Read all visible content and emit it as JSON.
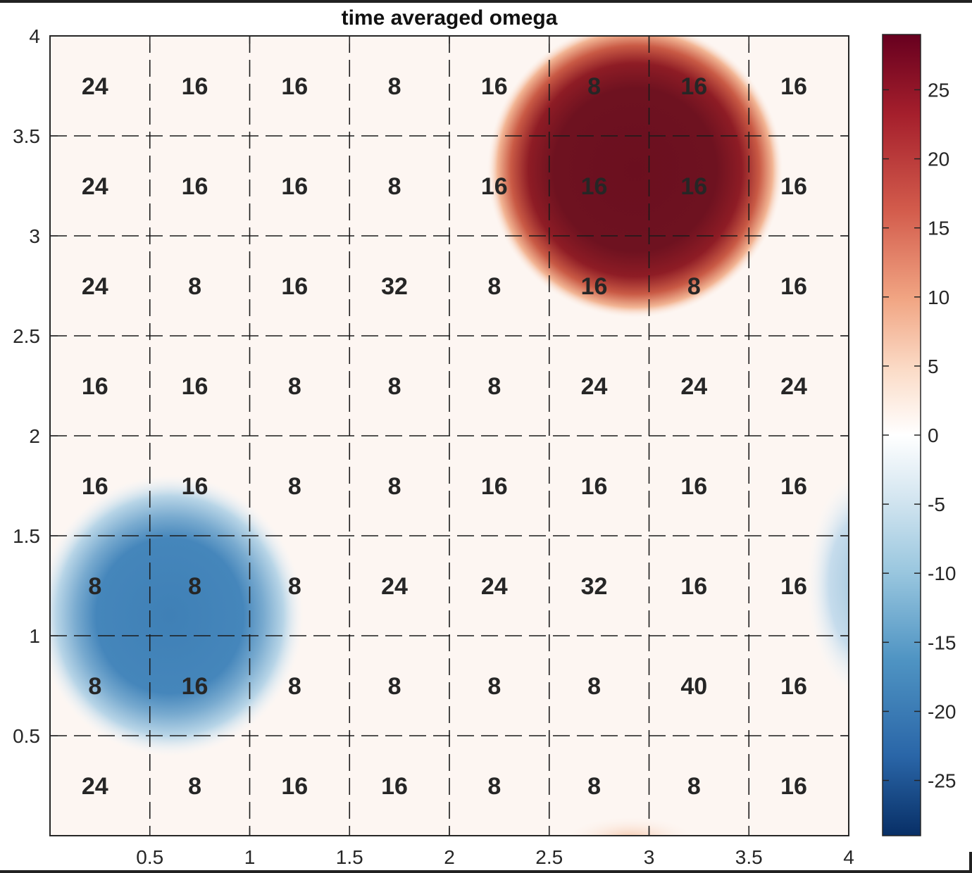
{
  "chart_data": {
    "type": "heatmap",
    "title": "time averaged omega",
    "xlabel": "",
    "ylabel": "",
    "xlim": [
      0,
      4
    ],
    "ylim": [
      0,
      4
    ],
    "xticks": [
      "0.5",
      "1",
      "1.5",
      "2",
      "2.5",
      "3",
      "3.5",
      "4"
    ],
    "yticks": [
      "0.5",
      "1",
      "1.5",
      "2",
      "2.5",
      "3",
      "3.5",
      "4"
    ],
    "grid_lines": [
      0.5,
      1,
      1.5,
      2,
      2.5,
      3,
      3.5
    ],
    "colorbar": {
      "range": [
        -29,
        29
      ],
      "ticks": [
        "25",
        "20",
        "15",
        "10",
        "5",
        "0",
        "-5",
        "-10",
        "-15",
        "-20",
        "-25"
      ]
    },
    "colors": {
      "deep_blue": "#0d2f6e",
      "blue": "#3c7cb4",
      "light_blue": "#a6cbe0",
      "white": "#ffffff",
      "light_red": "#f4bfa0",
      "red": "#c23a36",
      "deep_red": "#6b0f1f"
    },
    "vortices": [
      {
        "name": "positive",
        "x": 2.93,
        "y": 3.33,
        "peak": 29
      },
      {
        "name": "negative",
        "x": 0.6,
        "y": 1.1,
        "peak": -22
      }
    ],
    "cell_labels": [
      [
        "24",
        "16",
        "16",
        "8",
        "16",
        "8",
        "16",
        "16"
      ],
      [
        "24",
        "16",
        "16",
        "8",
        "16",
        "16",
        "16",
        "16"
      ],
      [
        "24",
        "8",
        "16",
        "32",
        "8",
        "16",
        "8",
        "16"
      ],
      [
        "16",
        "16",
        "8",
        "8",
        "8",
        "24",
        "24",
        "24"
      ],
      [
        "16",
        "16",
        "8",
        "8",
        "16",
        "16",
        "16",
        "16"
      ],
      [
        "8",
        "8",
        "8",
        "24",
        "24",
        "32",
        "16",
        "16"
      ],
      [
        "8",
        "16",
        "8",
        "8",
        "8",
        "8",
        "40",
        "16"
      ],
      [
        "24",
        "8",
        "16",
        "16",
        "8",
        "8",
        "8",
        "16"
      ]
    ]
  }
}
